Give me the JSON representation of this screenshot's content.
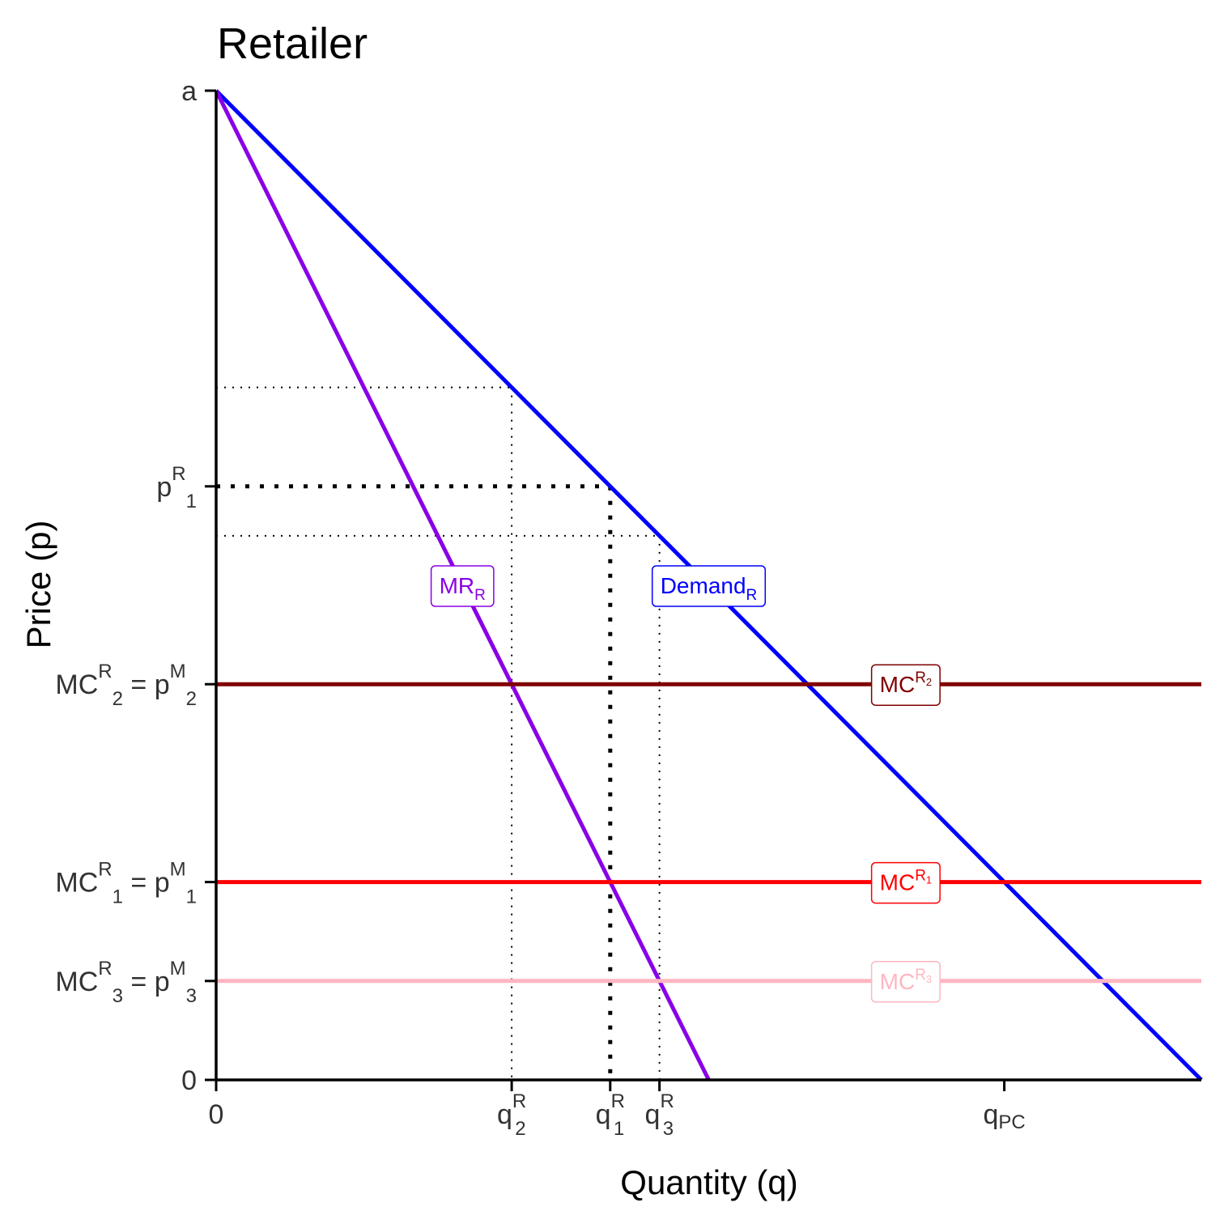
{
  "chart_data": {
    "type": "line",
    "title": "Retailer",
    "xlabel": "Quantity (q)",
    "ylabel": "Price (p)",
    "xlim": [
      0,
      10
    ],
    "ylim": [
      0,
      10
    ],
    "grid": false,
    "series": [
      {
        "name": "Demand_R",
        "color": "#0000ff",
        "x": [
          0,
          10
        ],
        "y": [
          10,
          0
        ]
      },
      {
        "name": "MR_R",
        "color": "#8a00e6",
        "x": [
          0,
          5
        ],
        "y": [
          10,
          0
        ]
      },
      {
        "name": "MC^R2",
        "color": "#800000",
        "x": [
          0,
          10
        ],
        "y": [
          4,
          4
        ]
      },
      {
        "name": "MC^R1",
        "color": "#ff0000",
        "x": [
          0,
          10
        ],
        "y": [
          2,
          2
        ]
      },
      {
        "name": "MC^R3",
        "color": "#ffb6c1",
        "x": [
          0,
          10
        ],
        "y": [
          1,
          1
        ]
      }
    ],
    "guides": [
      {
        "q": 3,
        "p": 7,
        "style": "thin"
      },
      {
        "q": 4,
        "p": 6,
        "style": "thick"
      },
      {
        "q": 4.5,
        "p": 5.5,
        "style": "thin"
      }
    ],
    "y_ticks": [
      {
        "value": 10,
        "label": "a"
      },
      {
        "value": 6,
        "label": "p",
        "sup": "R",
        "sub": "1"
      },
      {
        "value": 4,
        "label": "MC",
        "sup": "R",
        "sub": "2",
        "label2": "p",
        "sup2": "M",
        "sub2": "2"
      },
      {
        "value": 2,
        "label": "MC",
        "sup": "R",
        "sub": "1",
        "label2": "p",
        "sup2": "M",
        "sub2": "1"
      },
      {
        "value": 1,
        "label": "MC",
        "sup": "R",
        "sub": "3",
        "label2": "p",
        "sup2": "M",
        "sub2": "3"
      },
      {
        "value": 0,
        "label": "0"
      }
    ],
    "x_ticks": [
      {
        "value": 0,
        "label": "0"
      },
      {
        "value": 3,
        "label": "q",
        "sup": "R",
        "sub": "2"
      },
      {
        "value": 4,
        "label": "q",
        "sup": "R",
        "sub": "1"
      },
      {
        "value": 4.5,
        "label": "q",
        "sup": "R",
        "sub": "3"
      },
      {
        "value": 8,
        "label": "q",
        "sub": "PC"
      }
    ],
    "labels": [
      {
        "text": "MR",
        "sub": "R",
        "color": "#8a00e6",
        "x": 2.5,
        "y": 5
      },
      {
        "text": "Demand",
        "sub": "R",
        "color": "#0000ff",
        "x": 5,
        "y": 5
      },
      {
        "text": "MC",
        "sup": "R",
        "supsub": "2",
        "color": "#800000",
        "x": 7,
        "y": 4
      },
      {
        "text": "MC",
        "sup": "R",
        "supsub": "1",
        "color": "#ff0000",
        "x": 7,
        "y": 2
      },
      {
        "text": "MC",
        "sup": "R",
        "supsub": "3",
        "color": "#ffb6c1",
        "x": 7,
        "y": 1
      }
    ]
  }
}
